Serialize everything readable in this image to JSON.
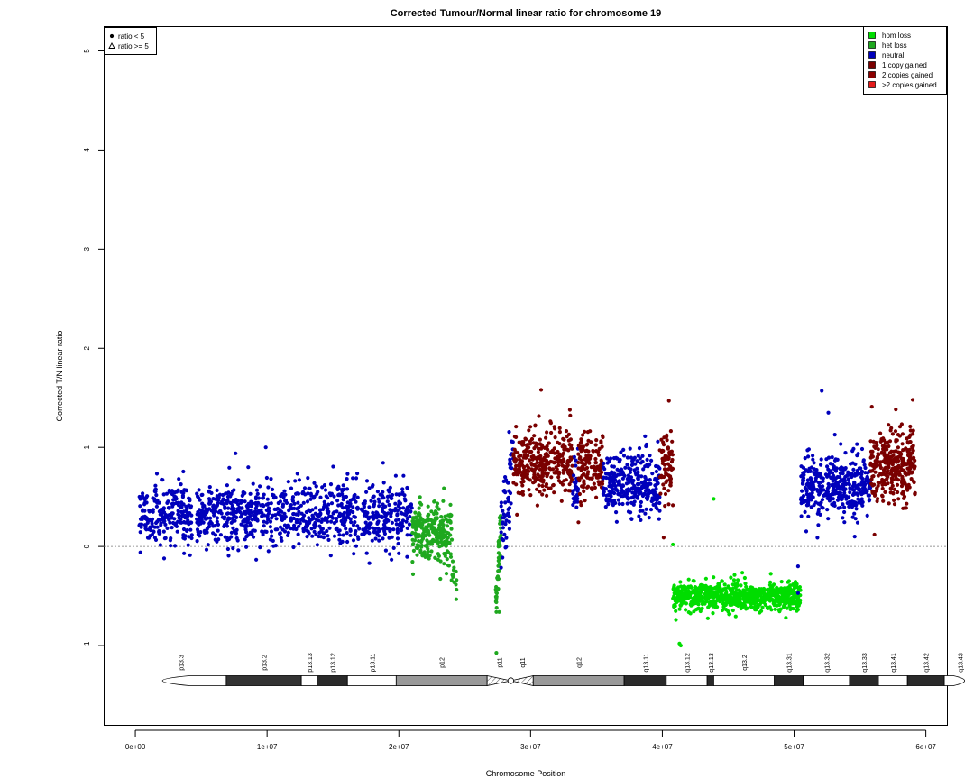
{
  "chart_data": {
    "type": "scatter",
    "title": "Corrected Tumour/Normal linear ratio for chromosome  19",
    "xlabel": "Chromosome Position",
    "ylabel": "Corrected T/N linear ratio",
    "xlim": [
      -2400000,
      61600000
    ],
    "ylim": [
      -1.8,
      5.25
    ],
    "x_ticks": [
      0,
      10000000,
      20000000,
      30000000,
      40000000,
      50000000,
      60000000
    ],
    "x_tick_labels": [
      "0e+00",
      "1e+07",
      "2e+07",
      "3e+07",
      "4e+07",
      "5e+07",
      "6e+07"
    ],
    "y_ticks": [
      -1,
      0,
      1,
      2,
      3,
      4,
      5
    ],
    "y_tick_labels": [
      "−1",
      "0",
      "1",
      "2",
      "3",
      "4",
      "5"
    ],
    "reference_line": 0,
    "legend_shape": {
      "placement": "top-left",
      "items": [
        {
          "label": "ratio < 5",
          "symbol": "circle"
        },
        {
          "label": "ratio >= 5",
          "symbol": "triangle"
        }
      ]
    },
    "legend_state": {
      "placement": "top-right",
      "items": [
        {
          "label": "hom loss",
          "color": "#00dd00"
        },
        {
          "label": "het loss",
          "color": "#1fa81f"
        },
        {
          "label": "neutral",
          "color": "#0000bb"
        },
        {
          "label": "1 copy gained",
          "color": "#7a0000"
        },
        {
          "label": "2 copies gained",
          "color": "#8b0000"
        },
        {
          "label": ">2 copies gained",
          "color": "#e41a1a"
        }
      ]
    },
    "segments": [
      {
        "start": 300000,
        "end": 21000000,
        "state": "neutral",
        "mean": 0.33,
        "sd": 0.16,
        "n": 1100
      },
      {
        "start": 21000000,
        "end": 24000000,
        "state": "het loss",
        "mean": 0.15,
        "sd": 0.14,
        "n": 260
      },
      {
        "start": 24000000,
        "end": 24400000,
        "state": "het loss",
        "mean": -0.25,
        "sd": 0.12,
        "n": 14
      },
      {
        "start": 27350000,
        "end": 27750000,
        "state": "het loss",
        "mean": -0.3,
        "sd": 0.2,
        "n": 45
      },
      {
        "start": 27750000,
        "end": 28700000,
        "state": "neutral",
        "mean": 0.55,
        "sd": 0.25,
        "n": 60
      },
      {
        "start": 28700000,
        "end": 33200000,
        "state": "1 copy gained",
        "mean": 0.85,
        "sd": 0.17,
        "n": 330
      },
      {
        "start": 33200000,
        "end": 33600000,
        "state": "neutral",
        "mean": 0.6,
        "sd": 0.15,
        "n": 30
      },
      {
        "start": 33600000,
        "end": 35500000,
        "state": "1 copy gained",
        "mean": 0.8,
        "sd": 0.17,
        "n": 140
      },
      {
        "start": 35500000,
        "end": 39800000,
        "state": "neutral",
        "mean": 0.63,
        "sd": 0.15,
        "n": 320
      },
      {
        "start": 39800000,
        "end": 40800000,
        "state": "1 copy gained",
        "mean": 0.8,
        "sd": 0.17,
        "n": 70
      },
      {
        "start": 40800000,
        "end": 50500000,
        "state": "hom loss",
        "mean": -0.5,
        "sd": 0.07,
        "n": 820
      },
      {
        "start": 50500000,
        "end": 55800000,
        "state": "neutral",
        "mean": 0.62,
        "sd": 0.17,
        "n": 400
      },
      {
        "start": 55800000,
        "end": 59200000,
        "state": "1 copy gained",
        "mean": 0.8,
        "sd": 0.18,
        "n": 320
      }
    ],
    "outliers": [
      {
        "x": 9900000,
        "y": 1.0,
        "state": "neutral"
      },
      {
        "x": 3700000,
        "y": -0.07,
        "state": "neutral"
      },
      {
        "x": 30800000,
        "y": 1.58,
        "state": "1 copy gained"
      },
      {
        "x": 40500000,
        "y": 1.47,
        "state": "1 copy gained"
      },
      {
        "x": 40100000,
        "y": 0.09,
        "state": "1 copy gained"
      },
      {
        "x": 40800000,
        "y": 0.02,
        "state": "hom loss"
      },
      {
        "x": 41300000,
        "y": -0.98,
        "state": "hom loss"
      },
      {
        "x": 41400000,
        "y": -1.0,
        "state": "hom loss"
      },
      {
        "x": 43900000,
        "y": 0.48,
        "state": "hom loss"
      },
      {
        "x": 52100000,
        "y": 1.57,
        "state": "neutral"
      },
      {
        "x": 52600000,
        "y": 1.35,
        "state": "neutral"
      },
      {
        "x": 54600000,
        "y": 0.1,
        "state": "neutral"
      },
      {
        "x": 55900000,
        "y": 1.41,
        "state": "1 copy gained"
      },
      {
        "x": 56100000,
        "y": 0.12,
        "state": "1 copy gained"
      },
      {
        "x": 59000000,
        "y": 1.48,
        "state": "1 copy gained"
      },
      {
        "x": 50300000,
        "y": -0.2,
        "state": "neutral"
      },
      {
        "x": 50300000,
        "y": -0.47,
        "state": "neutral"
      }
    ],
    "ideogram": {
      "bands": [
        {
          "name": "p13.3",
          "start": 0,
          "end": 6900000,
          "stain": "gneg"
        },
        {
          "name": "p13.2",
          "start": 6900000,
          "end": 12600000,
          "stain": "gpos75"
        },
        {
          "name": "p13.13",
          "start": 12600000,
          "end": 13800000,
          "stain": "gneg"
        },
        {
          "name": "p13.12",
          "start": 13800000,
          "end": 16100000,
          "stain": "gpos25"
        },
        {
          "name": "p13.11",
          "start": 16100000,
          "end": 19800000,
          "stain": "gneg"
        },
        {
          "name": "p12",
          "start": 19800000,
          "end": 26700000,
          "stain": "gvar"
        },
        {
          "name": "p11",
          "start": 26700000,
          "end": 28500000,
          "stain": "acen"
        },
        {
          "name": "q11",
          "start": 28500000,
          "end": 30200000,
          "stain": "acen"
        },
        {
          "name": "q12",
          "start": 30200000,
          "end": 37100000,
          "stain": "gvar"
        },
        {
          "name": "q13.11",
          "start": 37100000,
          "end": 40300000,
          "stain": "gpos25"
        },
        {
          "name": "q13.12",
          "start": 40300000,
          "end": 43400000,
          "stain": "gneg"
        },
        {
          "name": "q13.13",
          "start": 43400000,
          "end": 43900000,
          "stain": "gpos25"
        },
        {
          "name": "q13.2",
          "start": 43900000,
          "end": 48500000,
          "stain": "gneg"
        },
        {
          "name": "q13.31",
          "start": 48500000,
          "end": 50700000,
          "stain": "gpos25"
        },
        {
          "name": "q13.32",
          "start": 50700000,
          "end": 54200000,
          "stain": "gneg"
        },
        {
          "name": "q13.33",
          "start": 54200000,
          "end": 56400000,
          "stain": "gpos25"
        },
        {
          "name": "q13.41",
          "start": 56400000,
          "end": 58600000,
          "stain": "gneg"
        },
        {
          "name": "q13.42",
          "start": 58600000,
          "end": 61400000,
          "stain": "gpos25"
        },
        {
          "name": "q13.43",
          "start": 61400000,
          "end": 63800000,
          "stain": "gneg"
        }
      ],
      "stain_colors": {
        "gneg": "#ffffff",
        "gpos25": "#2a2a2a",
        "gpos75": "#333333",
        "gvar": "#999999",
        "acen": "#ffffff"
      }
    }
  }
}
